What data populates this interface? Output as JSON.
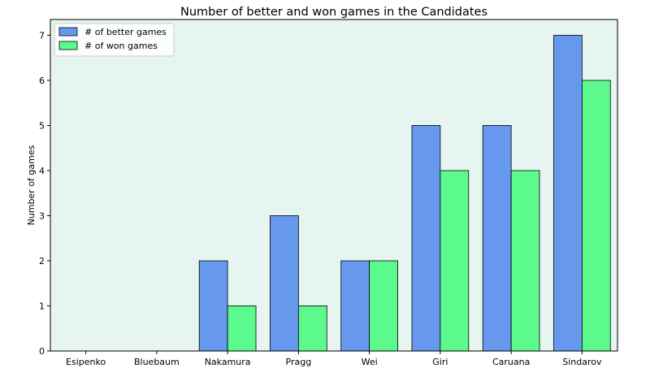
{
  "chart_data": {
    "type": "bar",
    "title": "Number of better and won games in the Candidates",
    "xlabel": "",
    "ylabel": "Number of games",
    "categories": [
      "Esipenko",
      "Bluebaum",
      "Nakamura",
      "Pragg",
      "Wei",
      "Giri",
      "Caruana",
      "Sindarov"
    ],
    "series": [
      {
        "name": "# of better games",
        "values": [
          0,
          0,
          2,
          3,
          2,
          5,
          5,
          7
        ],
        "color": "#6699ee"
      },
      {
        "name": "# of won games",
        "values": [
          0,
          0,
          1,
          1,
          2,
          4,
          4,
          6
        ],
        "color": "#5cfa8c"
      }
    ],
    "ylim": [
      0,
      7.35
    ],
    "yticks": [
      0,
      1,
      2,
      3,
      4,
      5,
      6,
      7
    ],
    "grid": false,
    "legend": "top-left",
    "plot_background": "#e6f5ef"
  }
}
